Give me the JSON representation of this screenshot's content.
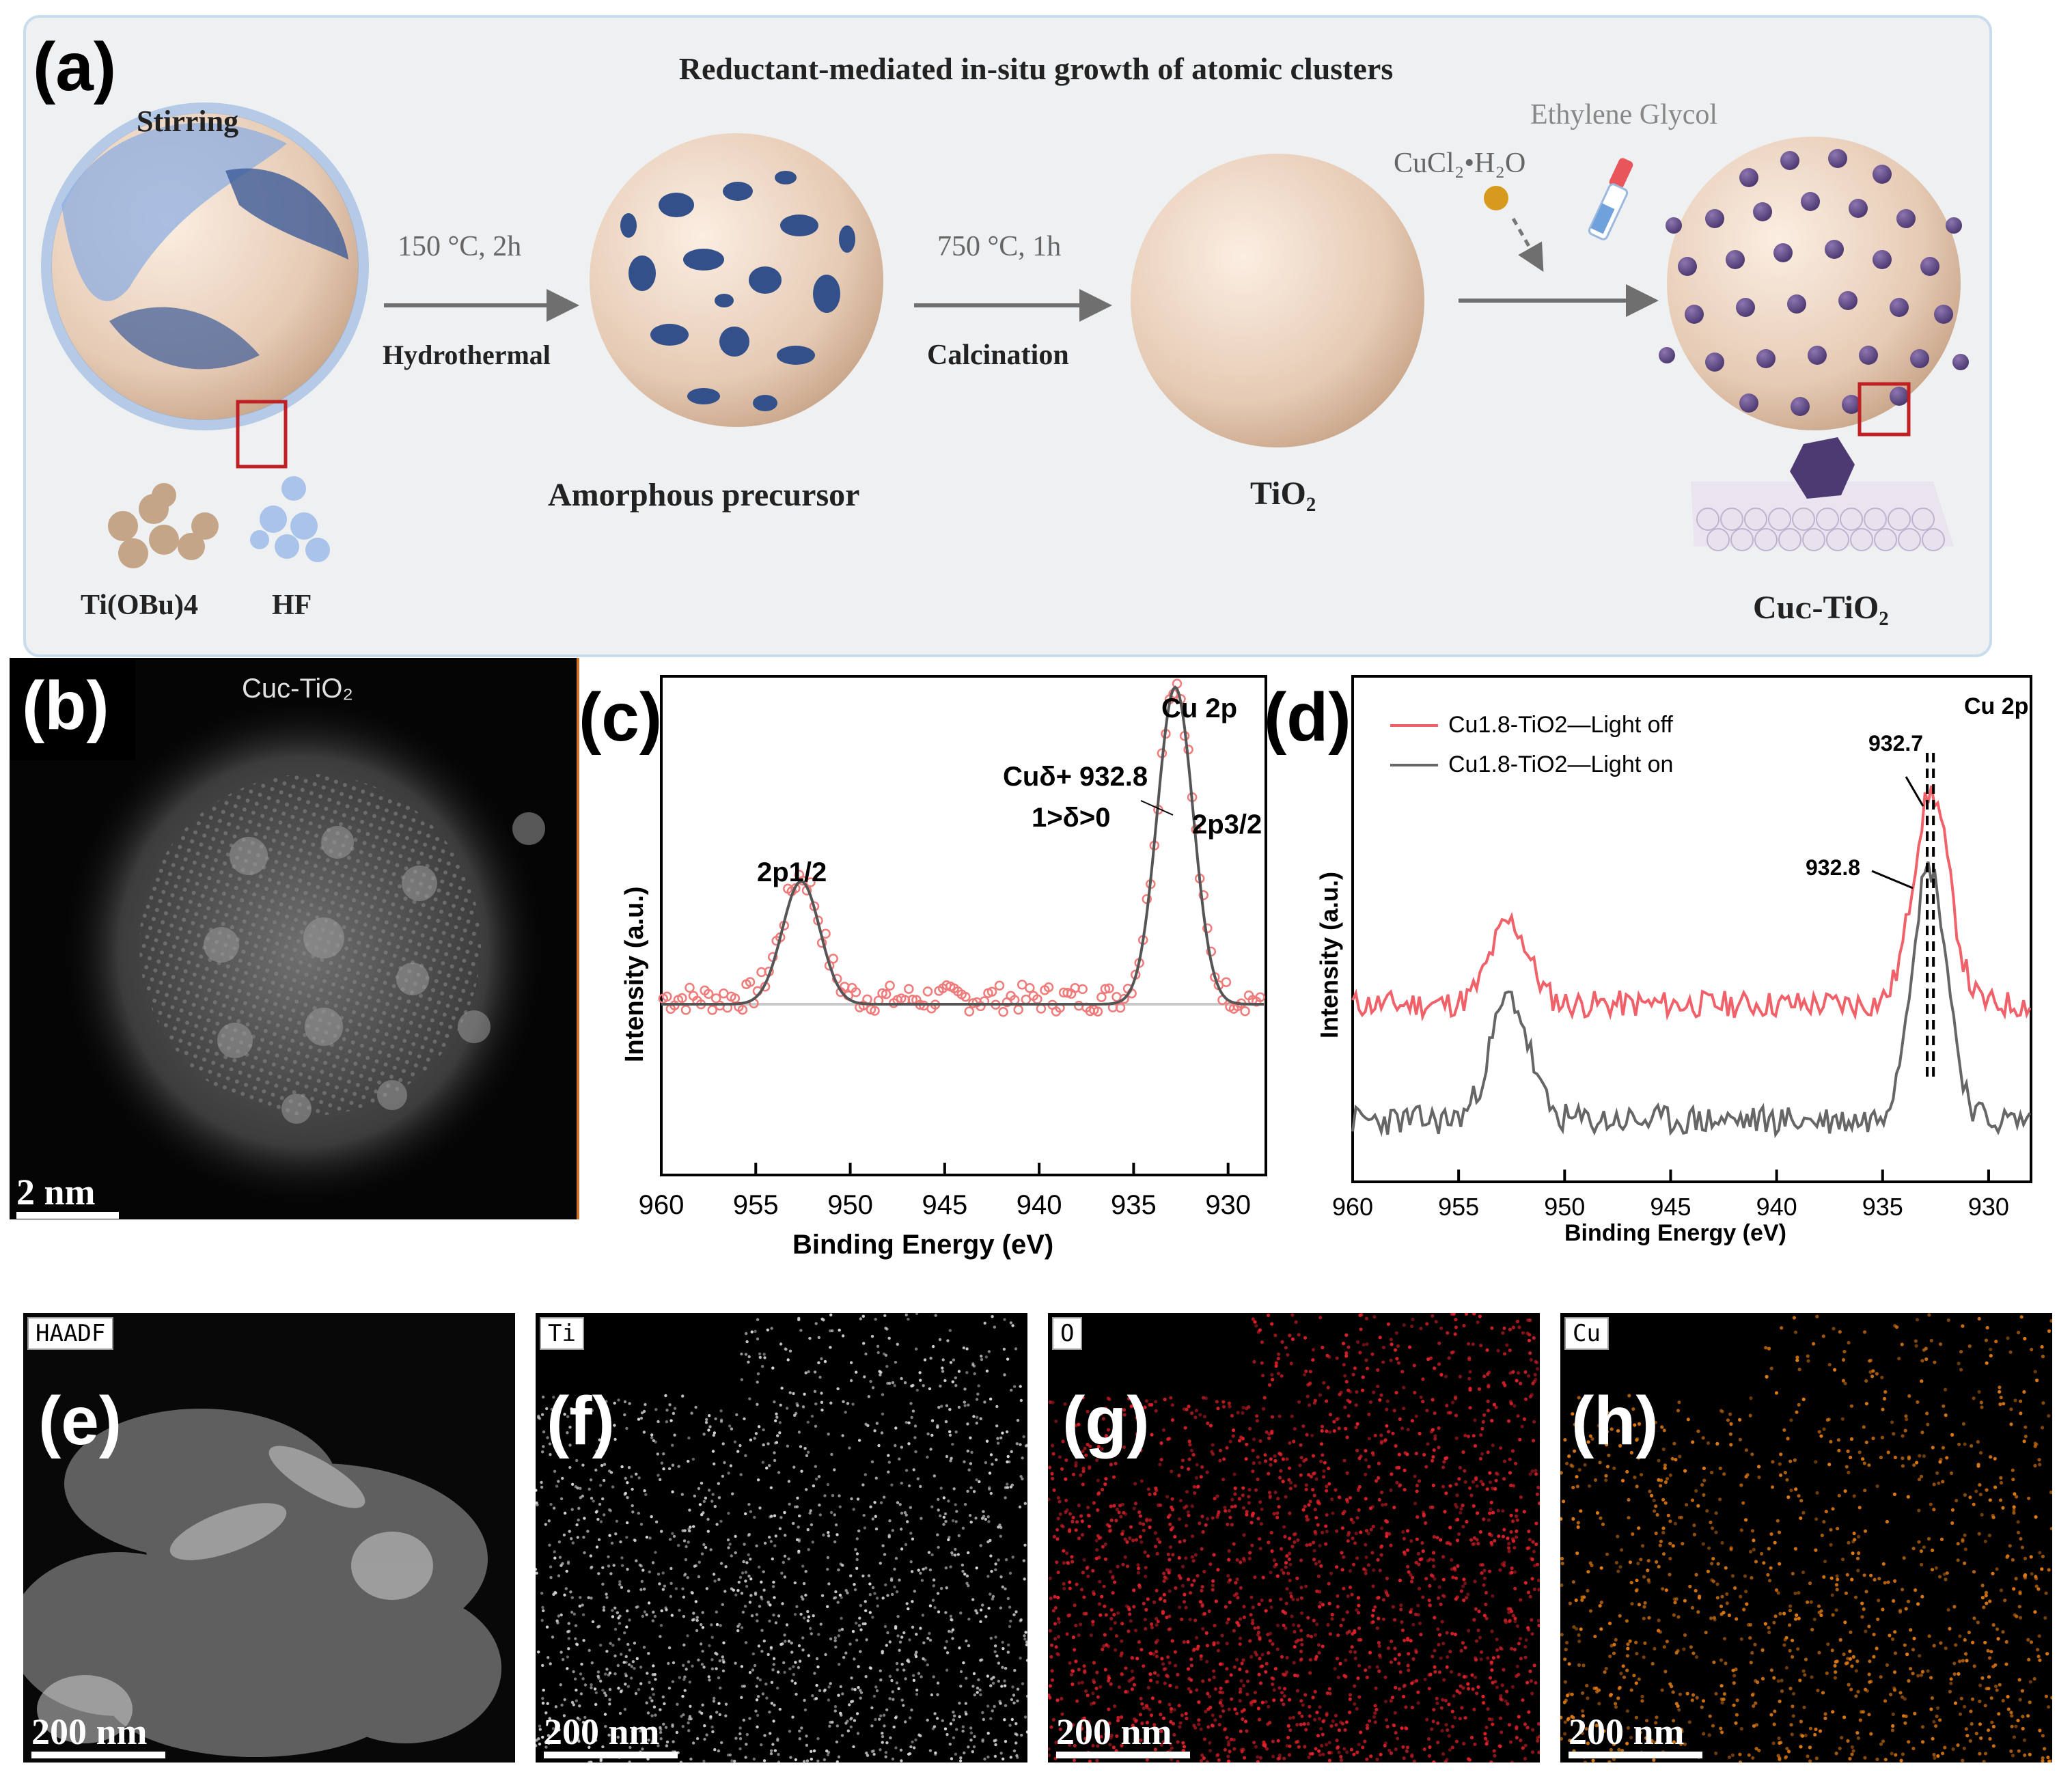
{
  "panel_a": {
    "label": "(a)",
    "title": "Reductant-mediated in-situ growth of atomic clusters",
    "stirring": "Stirring",
    "reagent_1": "Ti(OBu)4",
    "reagent_2": "HF",
    "step1_condition": "150 °C, 2h",
    "step1_name": "Hydrothermal",
    "intermediate": "Amorphous precursor",
    "step2_condition": "750 °C, 1h",
    "step2_name": "Calcination",
    "product_1": "TiO₂",
    "copper_salt": "CuCl₂•H₂O",
    "reductant": "Ethylene Glycol",
    "product_2": "Cuᴄ-TiO₂"
  },
  "panel_b": {
    "label": "(b)",
    "sample": "Cuᴄ-TiO₂",
    "scale_bar": "2 nm"
  },
  "panel_c": {
    "label": "(c)",
    "chart_data": {
      "type": "scatter",
      "title": "Cu 2p",
      "xlabel": "Binding Energy (eV)",
      "ylabel": "Intensity (a.u.)",
      "xlim": [
        960,
        928
      ],
      "xticks": [
        960,
        955,
        950,
        945,
        940,
        935,
        930
      ],
      "peaks": [
        {
          "label": "2p1/2",
          "position": 952.6,
          "height": 0.31
        },
        {
          "label": "2p3/2",
          "position": 932.8,
          "height": 0.8
        }
      ],
      "annotation": [
        "Cuδ+ 932.8",
        "1>δ>0"
      ],
      "series": [
        {
          "name": "experimental",
          "style": "open circles",
          "color": "#ef7b7b"
        },
        {
          "name": "fit",
          "style": "line",
          "color": "#555555"
        },
        {
          "name": "background",
          "style": "line",
          "color": "#c8c8c8"
        }
      ]
    }
  },
  "panel_d": {
    "label": "(d)",
    "chart_data": {
      "type": "line",
      "title": "Cu 2p",
      "xlabel": "Binding Energy (eV)",
      "ylabel": "Intensity (a.u.)",
      "xlim": [
        960,
        928
      ],
      "xticks": [
        960,
        955,
        950,
        945,
        940,
        935,
        930
      ],
      "series": [
        {
          "name": "Cu1.8-TiO2—Light off",
          "color": "#f0616a",
          "peak_position": 932.7
        },
        {
          "name": "Cu1.8-TiO2—Light on",
          "color": "#666666",
          "peak_position": 932.8
        }
      ],
      "annotations": [
        "932.7",
        "932.8"
      ]
    }
  },
  "panel_e": {
    "label": "(e)",
    "tag": "HAADF",
    "scale_bar": "200 nm"
  },
  "panel_f": {
    "label": "(f)",
    "tag": "Ti",
    "scale_bar": "200 nm",
    "color": "#d8d8d8"
  },
  "panel_g": {
    "label": "(g)",
    "tag": "O",
    "scale_bar": "200 nm",
    "color": "#e0202a"
  },
  "panel_h": {
    "label": "(h)",
    "tag": "Cu",
    "scale_bar": "200 nm",
    "color": "#e07a10"
  }
}
